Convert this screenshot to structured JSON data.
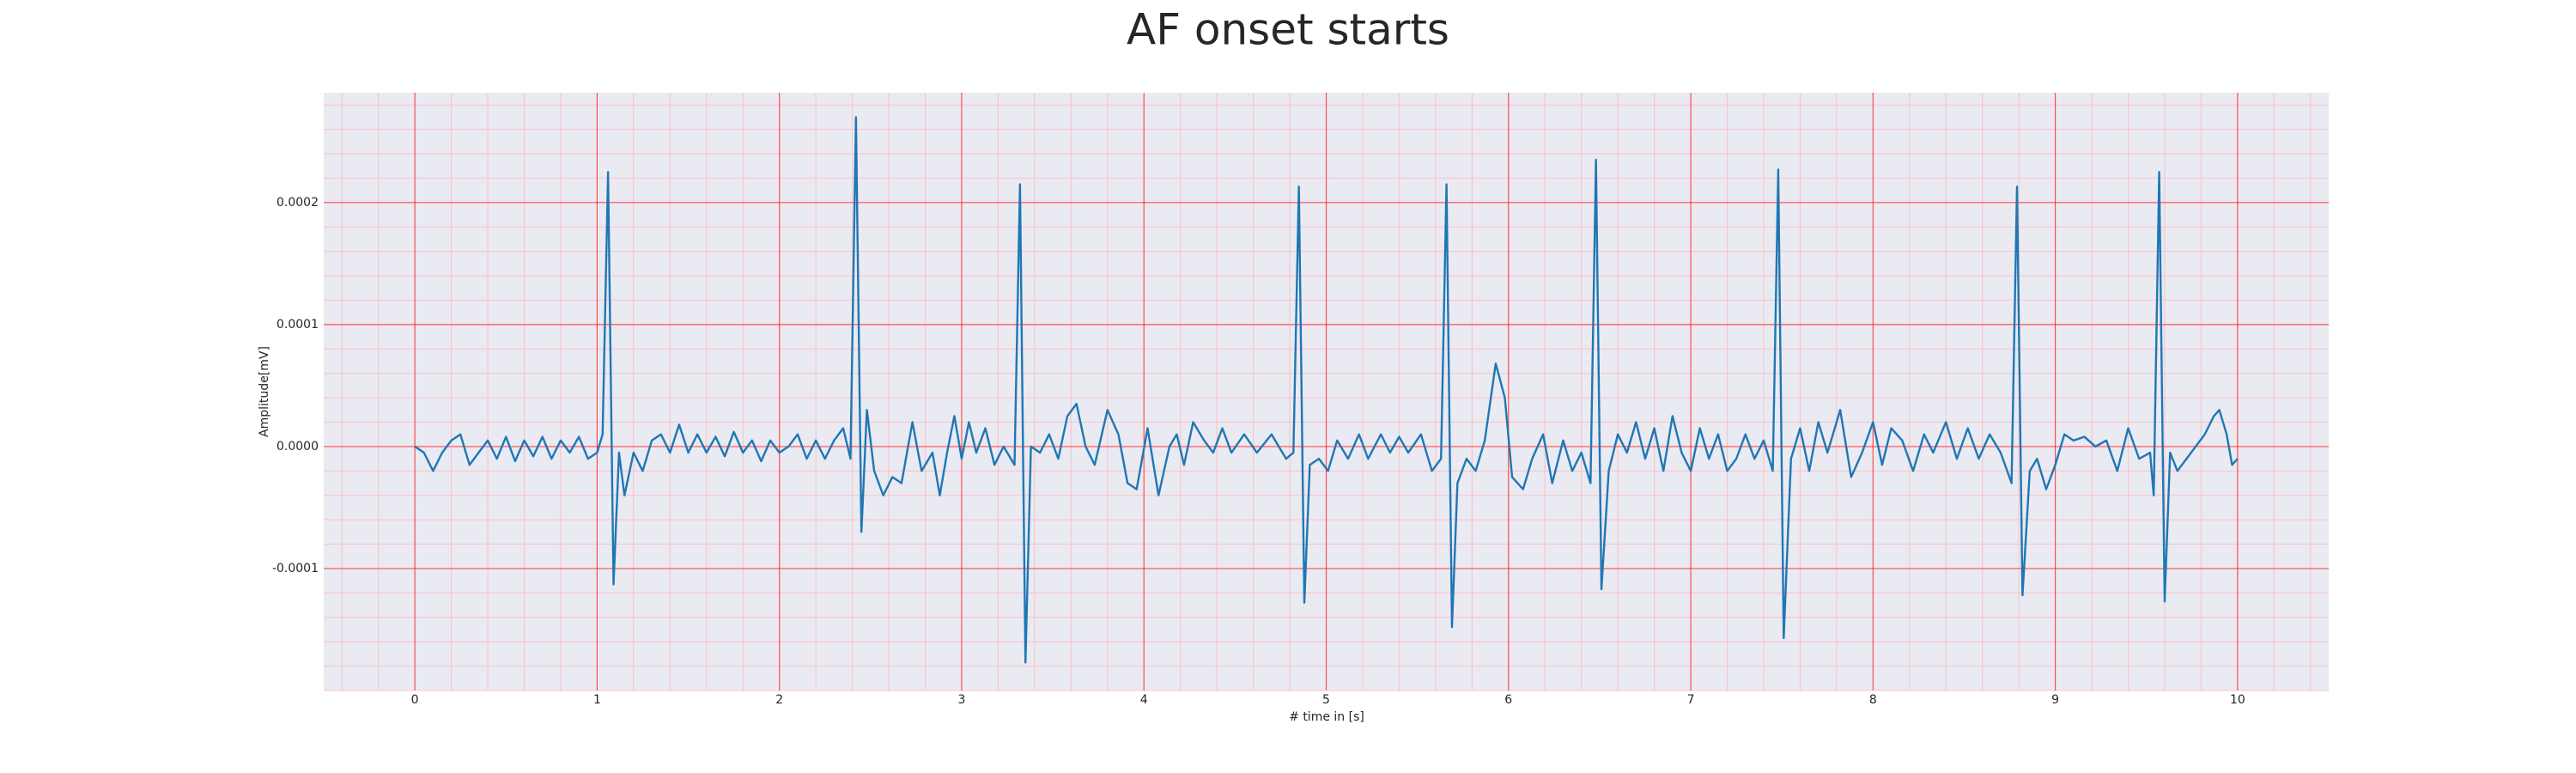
{
  "chart_data": {
    "type": "line",
    "title": "AF onset starts",
    "xlabel": "# time in [s]",
    "ylabel": "Amplitude[mV]",
    "color": "#1f77b4",
    "grid": true,
    "grid_color": "#ff0000",
    "minor_grid": true,
    "minor_grid_color": "#ffb0b0",
    "background": "#eaeaf2",
    "xlim": [
      -0.5,
      10.5
    ],
    "ylim": [
      -0.0002,
      0.00029
    ],
    "xticks": [
      0,
      1,
      2,
      3,
      4,
      5,
      6,
      7,
      8,
      9,
      10
    ],
    "yticks": [
      -0.0001,
      {
        "value": 0,
        "label": "0.0000"
      },
      0.0001,
      0.0002
    ],
    "x": [
      0.0,
      0.05,
      0.1,
      0.15,
      0.2,
      0.25,
      0.3,
      0.35,
      0.4,
      0.45,
      0.5,
      0.55,
      0.6,
      0.65,
      0.7,
      0.75,
      0.8,
      0.85,
      0.9,
      0.95,
      1.0,
      1.03,
      1.06,
      1.09,
      1.12,
      1.15,
      1.2,
      1.25,
      1.3,
      1.35,
      1.4,
      1.45,
      1.5,
      1.55,
      1.6,
      1.65,
      1.7,
      1.75,
      1.8,
      1.85,
      1.9,
      1.95,
      2.0,
      2.05,
      2.1,
      2.15,
      2.2,
      2.25,
      2.3,
      2.35,
      2.39,
      2.42,
      2.45,
      2.48,
      2.52,
      2.57,
      2.62,
      2.67,
      2.73,
      2.78,
      2.84,
      2.88,
      2.92,
      2.96,
      3.0,
      3.04,
      3.08,
      3.13,
      3.18,
      3.23,
      3.29,
      3.32,
      3.35,
      3.38,
      3.43,
      3.48,
      3.53,
      3.58,
      3.63,
      3.68,
      3.73,
      3.8,
      3.86,
      3.91,
      3.96,
      4.02,
      4.08,
      4.14,
      4.18,
      4.22,
      4.27,
      4.33,
      4.38,
      4.43,
      4.48,
      4.55,
      4.62,
      4.7,
      4.78,
      4.82,
      4.85,
      4.88,
      4.91,
      4.96,
      5.01,
      5.06,
      5.12,
      5.18,
      5.23,
      5.3,
      5.35,
      5.4,
      5.45,
      5.52,
      5.58,
      5.63,
      5.66,
      5.69,
      5.72,
      5.77,
      5.82,
      5.87,
      5.93,
      5.98,
      6.02,
      6.08,
      6.13,
      6.19,
      6.24,
      6.3,
      6.35,
      6.4,
      6.45,
      6.48,
      6.51,
      6.55,
      6.6,
      6.65,
      6.7,
      6.75,
      6.8,
      6.85,
      6.9,
      6.95,
      7.0,
      7.05,
      7.1,
      7.15,
      7.2,
      7.25,
      7.3,
      7.35,
      7.4,
      7.45,
      7.48,
      7.51,
      7.55,
      7.6,
      7.65,
      7.7,
      7.75,
      7.82,
      7.88,
      7.94,
      8.0,
      8.05,
      8.1,
      8.16,
      8.22,
      8.28,
      8.33,
      8.4,
      8.46,
      8.52,
      8.58,
      8.64,
      8.7,
      8.76,
      8.79,
      8.82,
      8.86,
      8.9,
      8.95,
      9.0,
      9.05,
      9.1,
      9.16,
      9.22,
      9.28,
      9.34,
      9.4,
      9.46,
      9.52,
      9.54,
      9.57,
      9.6,
      9.63,
      9.67,
      9.72,
      9.77,
      9.82,
      9.87,
      9.9,
      9.94,
      9.97,
      10.0
    ],
    "values": [
      0,
      -5e-06,
      -2e-05,
      -5e-06,
      5e-06,
      1e-05,
      -1.5e-05,
      -5e-06,
      5e-06,
      -1e-05,
      8e-06,
      -1.2e-05,
      5e-06,
      -8e-06,
      8e-06,
      -1e-05,
      5e-06,
      -5e-06,
      8e-06,
      -1e-05,
      -5e-06,
      1e-05,
      0.000225,
      -0.000113,
      -5e-06,
      -4e-05,
      -5e-06,
      -2e-05,
      5e-06,
      1e-05,
      -5e-06,
      1.8e-05,
      -5e-06,
      1e-05,
      -5e-06,
      8e-06,
      -8e-06,
      1.2e-05,
      -5e-06,
      5e-06,
      -1.2e-05,
      5e-06,
      -5e-06,
      0,
      1e-05,
      -1e-05,
      5e-06,
      -1e-05,
      5e-06,
      1.5e-05,
      -1e-05,
      0.00027,
      -7e-05,
      3e-05,
      -2e-05,
      -4e-05,
      -2.5e-05,
      -3e-05,
      2e-05,
      -2e-05,
      -5e-06,
      -4e-05,
      -5e-06,
      2.5e-05,
      -1e-05,
      2e-05,
      -5e-06,
      1.5e-05,
      -1.5e-05,
      0,
      -1.5e-05,
      0.000215,
      -0.000177,
      0,
      -5e-06,
      1e-05,
      -1e-05,
      2.5e-05,
      3.5e-05,
      0,
      -1.5e-05,
      3e-05,
      1e-05,
      -3e-05,
      -3.5e-05,
      1.5e-05,
      -4e-05,
      0,
      1e-05,
      -1.5e-05,
      2e-05,
      5e-06,
      -5e-06,
      1.5e-05,
      -5e-06,
      1e-05,
      -5e-06,
      1e-05,
      -1e-05,
      -5e-06,
      0.000213,
      -0.000128,
      -1.5e-05,
      -1e-05,
      -2e-05,
      5e-06,
      -1e-05,
      1e-05,
      -1e-05,
      1e-05,
      -5e-06,
      8e-06,
      -5e-06,
      1e-05,
      -2e-05,
      -1e-05,
      0.000215,
      -0.000148,
      -3e-05,
      -1e-05,
      -2e-05,
      5e-06,
      6.8e-05,
      4e-05,
      -2.5e-05,
      -3.5e-05,
      -1e-05,
      1e-05,
      -3e-05,
      5e-06,
      -2e-05,
      -5e-06,
      -3e-05,
      0.000235,
      -0.000117,
      -2e-05,
      1e-05,
      -5e-06,
      2e-05,
      -1e-05,
      1.5e-05,
      -2e-05,
      2.5e-05,
      -5e-06,
      -2e-05,
      1.5e-05,
      -1e-05,
      1e-05,
      -2e-05,
      -1e-05,
      1e-05,
      -1e-05,
      5e-06,
      -2e-05,
      0.000227,
      -0.000157,
      -1e-05,
      1.5e-05,
      -2e-05,
      2e-05,
      -5e-06,
      3e-05,
      -2.5e-05,
      -5e-06,
      2e-05,
      -1.5e-05,
      1.5e-05,
      5e-06,
      -2e-05,
      1e-05,
      -5e-06,
      2e-05,
      -1e-05,
      1.5e-05,
      -1e-05,
      1e-05,
      -5e-06,
      -3e-05,
      0.000213,
      -0.000122,
      -2e-05,
      -1e-05,
      -3.5e-05,
      -1.5e-05,
      1e-05,
      5e-06,
      8e-06,
      0,
      5e-06,
      -2e-05,
      1.5e-05,
      -1e-05,
      -5e-06,
      -4e-05,
      0.000225,
      -0.000127,
      -5e-06,
      -2e-05,
      -1e-05,
      0,
      1e-05,
      2.5e-05,
      3e-05,
      1e-05,
      -1.5e-05,
      -1e-05
    ]
  }
}
